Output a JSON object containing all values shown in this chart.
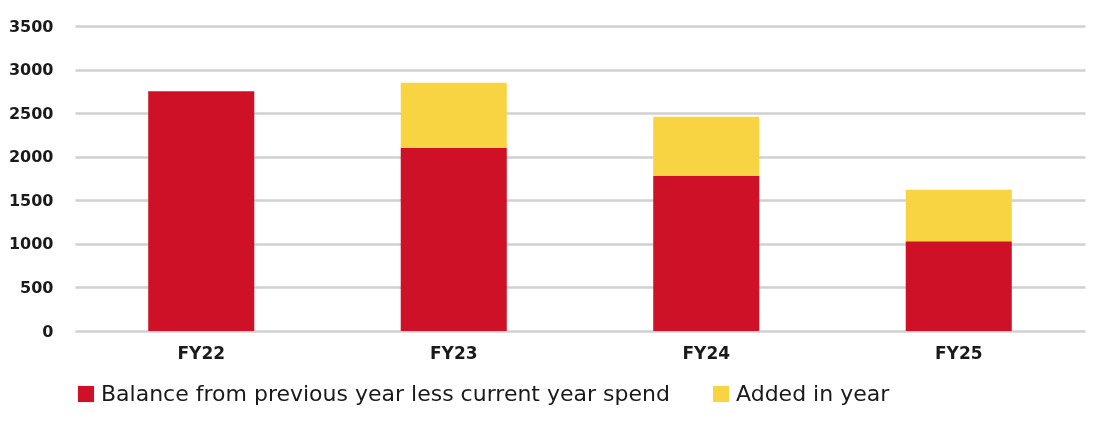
{
  "chart_data": {
    "type": "bar",
    "stacked": true,
    "categories": [
      "FY22",
      "FY23",
      "FY24",
      "FY25"
    ],
    "series": [
      {
        "name": "Balance from previous year less current year spend",
        "color": "#ce1126",
        "values": [
          2750,
          2100,
          1780,
          1030
        ]
      },
      {
        "name": "Added in year",
        "color": "#f9d442",
        "values": [
          0,
          750,
          680,
          590
        ]
      }
    ],
    "ylim": [
      0,
      3500
    ],
    "yticks": [
      0,
      500,
      1000,
      1500,
      2000,
      2500,
      3000,
      3500
    ],
    "grid": "y",
    "legend": "bottom"
  }
}
